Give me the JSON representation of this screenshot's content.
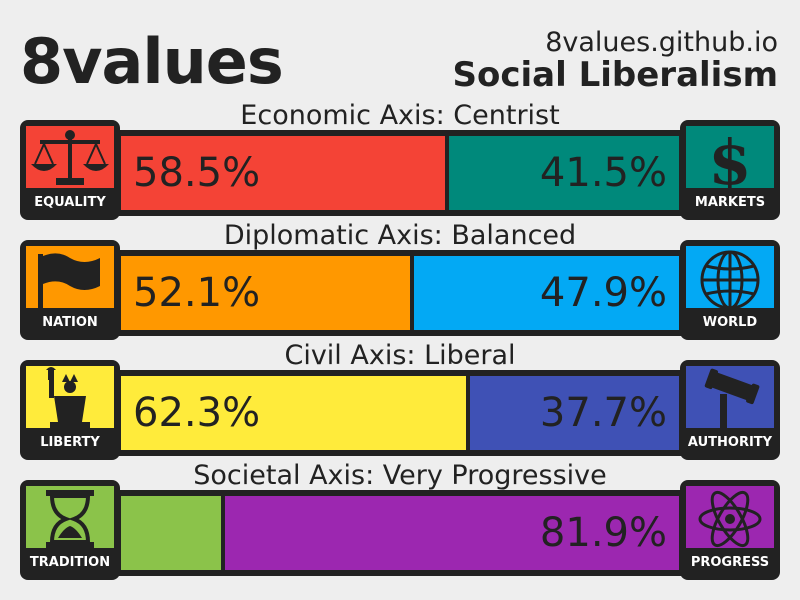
{
  "header": {
    "title": "8values",
    "site": "8values.github.io",
    "ideology": "Social Liberalism"
  },
  "chart_data": {
    "type": "bar",
    "orientation": "horizontal",
    "stacked": true,
    "axes": [
      {
        "label": "Economic Axis: Centrist",
        "left": {
          "name": "EQUALITY",
          "value": 58.5,
          "label": "58.5%",
          "color": "#f44336",
          "icon": "scales-icon"
        },
        "right": {
          "name": "MARKETS",
          "value": 41.5,
          "label": "41.5%",
          "color": "#00897b",
          "icon": "dollar-icon"
        }
      },
      {
        "label": "Diplomatic Axis: Balanced",
        "left": {
          "name": "NATION",
          "value": 52.1,
          "label": "52.1%",
          "color": "#ff9800",
          "icon": "flag-icon"
        },
        "right": {
          "name": "WORLD",
          "value": 47.9,
          "label": "47.9%",
          "color": "#03a9f4",
          "icon": "globe-icon"
        }
      },
      {
        "label": "Civil Axis: Liberal",
        "left": {
          "name": "LIBERTY",
          "value": 62.3,
          "label": "62.3%",
          "color": "#ffeb3b",
          "icon": "statue-of-liberty-icon"
        },
        "right": {
          "name": "AUTHORITY",
          "value": 37.7,
          "label": "37.7%",
          "color": "#3f51b5",
          "icon": "gavel-icon"
        }
      },
      {
        "label": "Societal Axis: Very Progressive",
        "left": {
          "name": "TRADITION",
          "value": 18.1,
          "label": "",
          "color": "#8bc34a",
          "icon": "hourglass-icon"
        },
        "right": {
          "name": "PROGRESS",
          "value": 81.9,
          "label": "81.9%",
          "color": "#9c27b0",
          "icon": "atom-icon"
        }
      }
    ]
  }
}
